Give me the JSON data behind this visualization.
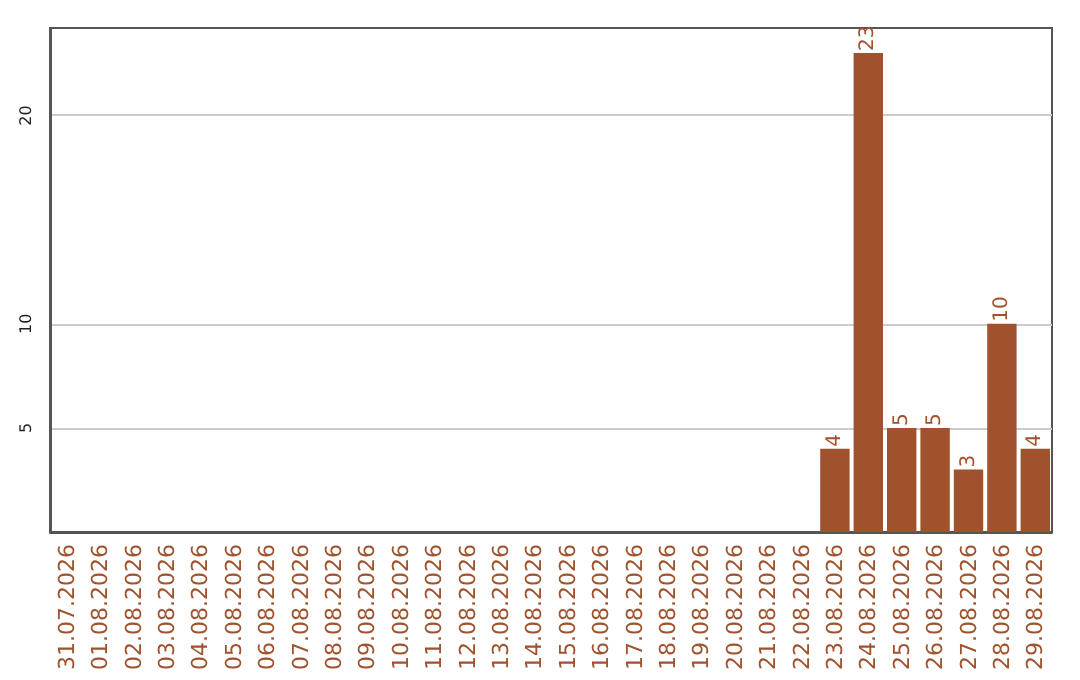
{
  "chart_data": {
    "type": "bar",
    "categories": [
      "31.07.2026",
      "01.08.2026",
      "02.08.2026",
      "03.08.2026",
      "04.08.2026",
      "05.08.2026",
      "06.08.2026",
      "07.08.2026",
      "08.08.2026",
      "09.08.2026",
      "10.08.2026",
      "11.08.2026",
      "12.08.2026",
      "13.08.2026",
      "14.08.2026",
      "15.08.2026",
      "16.08.2026",
      "17.08.2026",
      "18.08.2026",
      "19.08.2026",
      "20.08.2026",
      "21.08.2026",
      "22.08.2026",
      "23.08.2026",
      "24.08.2026",
      "25.08.2026",
      "26.08.2026",
      "27.08.2026",
      "28.08.2026",
      "29.08.2026"
    ],
    "values": [
      0,
      0,
      0,
      0,
      0,
      0,
      0,
      0,
      0,
      0,
      0,
      0,
      0,
      0,
      0,
      0,
      0,
      0,
      0,
      0,
      0,
      0,
      0,
      4,
      23,
      5,
      5,
      3,
      10,
      4
    ],
    "value_labels": [
      null,
      null,
      null,
      null,
      null,
      null,
      null,
      null,
      null,
      null,
      null,
      null,
      null,
      null,
      null,
      null,
      null,
      null,
      null,
      null,
      null,
      null,
      null,
      "4",
      "23",
      "5",
      "5",
      "3",
      "10",
      "4"
    ],
    "color": "#a0522d",
    "ylim": [
      0,
      24.2
    ],
    "yticks": [
      5,
      10,
      20
    ],
    "grid": "y"
  }
}
